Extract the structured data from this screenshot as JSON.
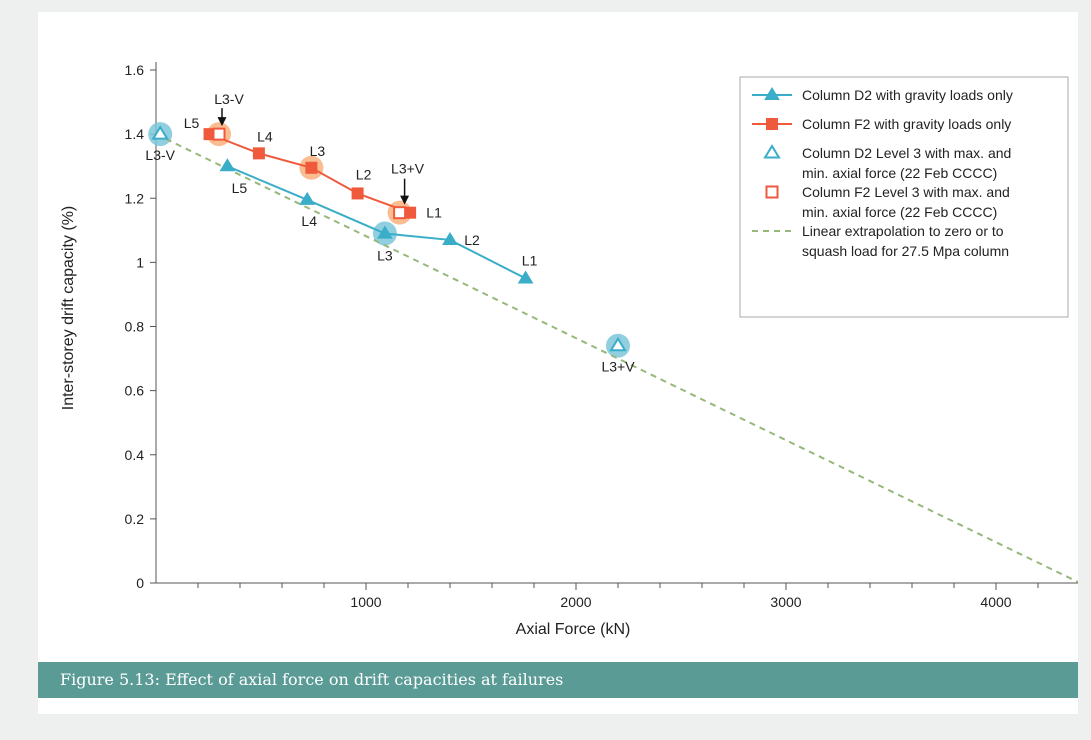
{
  "figure": {
    "caption": "Figure 5.13: Effect of axial force on drift capacities at failures"
  },
  "chart_data": {
    "type": "line",
    "xlabel": "Axial Force (kN)",
    "ylabel": "Inter-storey drift capacity (%)",
    "xlim": [
      0,
      4400
    ],
    "ylim": [
      0,
      1.6
    ],
    "x_ticks": [
      1000,
      2000,
      3000,
      4000
    ],
    "y_ticks": [
      0,
      0.2,
      0.4,
      0.6,
      0.8,
      1,
      1.2,
      1.4,
      1.6
    ],
    "y_tick_labels": [
      "0",
      "0.2",
      "0.4",
      "0.6",
      "0.8",
      "1",
      "1.2",
      "1.4",
      "1.6"
    ],
    "grid": false,
    "legend_position": "top-right",
    "colors": {
      "d2": "#3aaec9",
      "f2": "#f05a3c",
      "extrapolation": "#96b87a",
      "d2_highlight": "#7ec7db",
      "f2_highlight": "#f9b27e"
    },
    "series": [
      {
        "name": "Column D2 with gravity loads only",
        "marker": "filled-triangle",
        "points": [
          {
            "x": 340,
            "y": 1.3,
            "label": "L5"
          },
          {
            "x": 720,
            "y": 1.195,
            "label": "L4"
          },
          {
            "x": 1090,
            "y": 1.09,
            "label": "L3"
          },
          {
            "x": 1400,
            "y": 1.07,
            "label": "L2"
          },
          {
            "x": 1760,
            "y": 0.95,
            "label": "L1"
          }
        ]
      },
      {
        "name": "Column F2 with gravity loads only",
        "marker": "filled-square",
        "points": [
          {
            "x": 255,
            "y": 1.4,
            "label": "L5"
          },
          {
            "x": 490,
            "y": 1.34,
            "label": "L4"
          },
          {
            "x": 740,
            "y": 1.295,
            "label": "L3"
          },
          {
            "x": 960,
            "y": 1.215,
            "label": "L2"
          },
          {
            "x": 1210,
            "y": 1.155,
            "label": "L1"
          }
        ]
      },
      {
        "name": "Column D2 Level 3 with max. and min. axial force (22 Feb CCCC)",
        "marker": "open-triangle",
        "points": [
          {
            "x": 20,
            "y": 1.4,
            "label": "L3-V"
          },
          {
            "x": 2200,
            "y": 0.74,
            "label": "L3+V"
          }
        ]
      },
      {
        "name": "Column F2 Level 3 with max. and min. axial force (22 Feb CCCC)",
        "marker": "open-square",
        "points": [
          {
            "x": 300,
            "y": 1.4,
            "label": "L3-V"
          },
          {
            "x": 1160,
            "y": 1.155,
            "label": "L3+V"
          }
        ]
      },
      {
        "name": "Linear extrapolation to zero or to squash load for 27.5 Mpa column",
        "marker": "dashed-line",
        "points": [
          {
            "x": 0,
            "y": 1.4
          },
          {
            "x": 4400,
            "y": 0
          }
        ]
      }
    ],
    "highlights": [
      {
        "x": 20,
        "y": 1.4,
        "color": "d2_highlight"
      },
      {
        "x": 1090,
        "y": 1.09,
        "color": "d2_highlight"
      },
      {
        "x": 2200,
        "y": 0.74,
        "color": "d2_highlight"
      },
      {
        "x": 300,
        "y": 1.4,
        "color": "f2_highlight"
      },
      {
        "x": 740,
        "y": 1.295,
        "color": "f2_highlight"
      },
      {
        "x": 1160,
        "y": 1.155,
        "color": "f2_highlight"
      }
    ],
    "legend_lines": [
      [
        "Column D2 with gravity loads only"
      ],
      [
        "Column F2 with gravity loads only"
      ],
      [
        "Column D2 Level 3 with max. and",
        "min. axial force (22 Feb CCCC)"
      ],
      [
        "Column F2 Level 3 with max. and",
        "min. axial force (22 Feb CCCC)"
      ],
      [
        "Linear extrapolation to zero or to",
        "squash load for 27.5 Mpa column"
      ]
    ]
  }
}
